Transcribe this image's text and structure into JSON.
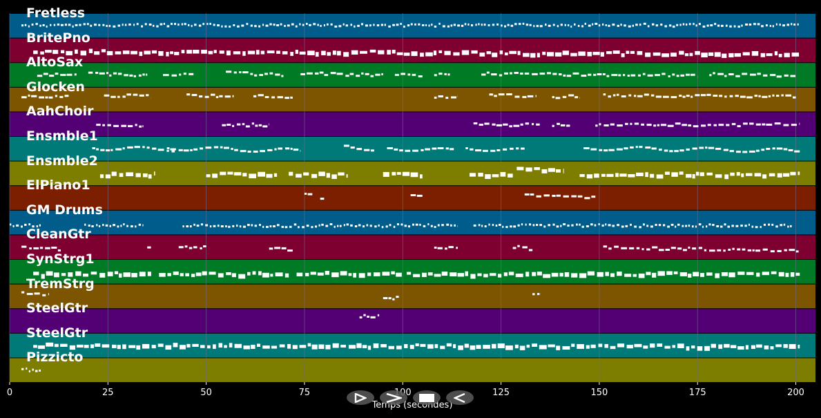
{
  "colors": {
    "background": "#000000",
    "note": "#ffffff",
    "grid": "#6f6f8f",
    "tracks": [
      "#005c8a",
      "#7d0030",
      "#007a25",
      "#7d5500",
      "#530075",
      "#007a78",
      "#7d7d00",
      "#7c1e00",
      "#005c8a",
      "#7d0030",
      "#007a25",
      "#7d5500",
      "#530075",
      "#007a78",
      "#7d7d00"
    ]
  },
  "tracks": [
    {
      "label": "Fretless",
      "notes": [
        [
          3,
          201,
          0.45,
          0.45,
          "dots"
        ]
      ]
    },
    {
      "label": "BritePno",
      "notes": [
        [
          6,
          201,
          0.5,
          0.6,
          "blocks"
        ]
      ]
    },
    {
      "label": "AltoSax",
      "notes": [
        [
          7,
          17,
          0.45,
          0.5,
          "dash"
        ],
        [
          20,
          35,
          0.4,
          0.5,
          "dash"
        ],
        [
          39,
          47,
          0.42,
          0.5,
          "dash"
        ],
        [
          55,
          70,
          0.4,
          0.48,
          "dash"
        ],
        [
          74,
          95,
          0.42,
          0.48,
          "dash"
        ],
        [
          98,
          105,
          0.45,
          0.5,
          "dash"
        ],
        [
          108,
          112,
          0.42,
          0.48,
          "dash"
        ],
        [
          120,
          175,
          0.42,
          0.5,
          "dash"
        ],
        [
          178,
          200,
          0.45,
          0.5,
          "dash"
        ]
      ]
    },
    {
      "label": "Glocken",
      "notes": [
        [
          3,
          15,
          0.35,
          0.35,
          "dash"
        ],
        [
          24,
          36,
          0.3,
          0.35,
          "dash"
        ],
        [
          45,
          57,
          0.3,
          0.35,
          "dash"
        ],
        [
          62,
          72,
          0.35,
          0.35,
          "dash"
        ],
        [
          108,
          114,
          0.35,
          0.35,
          "dash"
        ],
        [
          122,
          134,
          0.3,
          0.35,
          "dash"
        ],
        [
          138,
          145,
          0.35,
          0.35,
          "dash"
        ],
        [
          151,
          200,
          0.3,
          0.35,
          "dash"
        ]
      ]
    },
    {
      "label": "AahChoir",
      "notes": [
        [
          22,
          34,
          0.5,
          0.52,
          "dash"
        ],
        [
          54,
          66,
          0.52,
          0.5,
          "dash"
        ],
        [
          118,
          135,
          0.5,
          0.5,
          "dash"
        ],
        [
          138,
          143,
          0.5,
          0.52,
          "dash"
        ],
        [
          149,
          201,
          0.5,
          0.5,
          "dash"
        ]
      ]
    },
    {
      "label": "Ensmble1",
      "notes": [
        [
          21,
          42,
          0.45,
          0.5,
          "curve"
        ],
        [
          40,
          74,
          0.45,
          0.55,
          "curve"
        ],
        [
          85,
          93,
          0.35,
          0.5,
          "curve"
        ],
        [
          96,
          113,
          0.45,
          0.55,
          "curve"
        ],
        [
          116,
          131,
          0.45,
          0.55,
          "curve"
        ],
        [
          146,
          201,
          0.45,
          0.55,
          "curve"
        ]
      ]
    },
    {
      "label": "Ensmble2",
      "notes": [
        [
          23,
          37,
          0.5,
          0.5,
          "blocks"
        ],
        [
          50,
          68,
          0.5,
          0.5,
          "blocks"
        ],
        [
          71,
          86,
          0.5,
          0.5,
          "blocks"
        ],
        [
          95,
          105,
          0.5,
          0.5,
          "blocks"
        ],
        [
          117,
          128,
          0.5,
          0.5,
          "blocks"
        ],
        [
          129,
          141,
          0.3,
          0.35,
          "blocks"
        ],
        [
          145,
          201,
          0.5,
          0.5,
          "blocks"
        ]
      ]
    },
    {
      "label": "ElPiano1",
      "notes": [
        [
          75,
          77,
          0.35,
          0.35,
          "dash"
        ],
        [
          79,
          80,
          0.45,
          0.45,
          "dash"
        ],
        [
          102,
          105,
          0.35,
          0.4,
          "dash"
        ],
        [
          131,
          149,
          0.35,
          0.45,
          "dash"
        ]
      ]
    },
    {
      "label": "GM Drums",
      "notes": [
        [
          0,
          8,
          0.6,
          0.6,
          "dots"
        ],
        [
          19,
          34,
          0.6,
          0.6,
          "dots"
        ],
        [
          44,
          114,
          0.6,
          0.6,
          "dots"
        ],
        [
          118,
          199,
          0.6,
          0.6,
          "dots"
        ]
      ]
    },
    {
      "label": "CleanGtr",
      "notes": [
        [
          3,
          13,
          0.5,
          0.55,
          "dash"
        ],
        [
          35,
          36,
          0.5,
          0.5,
          "dash"
        ],
        [
          43,
          50,
          0.45,
          0.5,
          "dash"
        ],
        [
          66,
          72,
          0.5,
          0.6,
          "dash"
        ],
        [
          108,
          114,
          0.5,
          0.5,
          "dash"
        ],
        [
          128,
          133,
          0.45,
          0.6,
          "dash"
        ],
        [
          151,
          201,
          0.5,
          0.6,
          "dash"
        ]
      ]
    },
    {
      "label": "SynStrg1",
      "notes": [
        [
          6,
          36,
          0.55,
          0.55,
          "blocks"
        ],
        [
          38,
          71,
          0.55,
          0.55,
          "blocks"
        ],
        [
          73,
          100,
          0.5,
          0.55,
          "blocks"
        ],
        [
          101,
          201,
          0.55,
          0.55,
          "blocks"
        ]
      ]
    },
    {
      "label": "TremStrg",
      "notes": [
        [
          3,
          10,
          0.35,
          0.4,
          "dash"
        ],
        [
          95,
          99,
          0.55,
          0.55,
          "dash"
        ],
        [
          133,
          135,
          0.4,
          0.4,
          "dash"
        ]
      ]
    },
    {
      "label": "SteelGtr",
      "notes": [
        [
          89,
          94,
          0.3,
          0.28,
          "dash"
        ]
      ]
    },
    {
      "label": "SteelGtr",
      "notes": [
        [
          6,
          201,
          0.45,
          0.5,
          "blocks"
        ]
      ]
    },
    {
      "label": "Pizzicto",
      "notes": [
        [
          3,
          8,
          0.45,
          0.5,
          "dots"
        ]
      ]
    }
  ],
  "axis": {
    "xmin": 0,
    "xmax": 205,
    "ticks": [
      0,
      25,
      50,
      75,
      100,
      125,
      150,
      175,
      200
    ],
    "tick_labels": [
      "0",
      "25",
      "50",
      "75",
      "100",
      "125",
      "150",
      "175",
      "200"
    ],
    "xlabel": "Temps (secondes)"
  },
  "controls": [
    {
      "name": "play-button",
      "icon": "play-outline-icon"
    },
    {
      "name": "forward-button",
      "icon": "forward-chevron-icon"
    },
    {
      "name": "stop-button",
      "icon": "stop-square-icon"
    },
    {
      "name": "rewind-button",
      "icon": "rewind-icon"
    }
  ]
}
